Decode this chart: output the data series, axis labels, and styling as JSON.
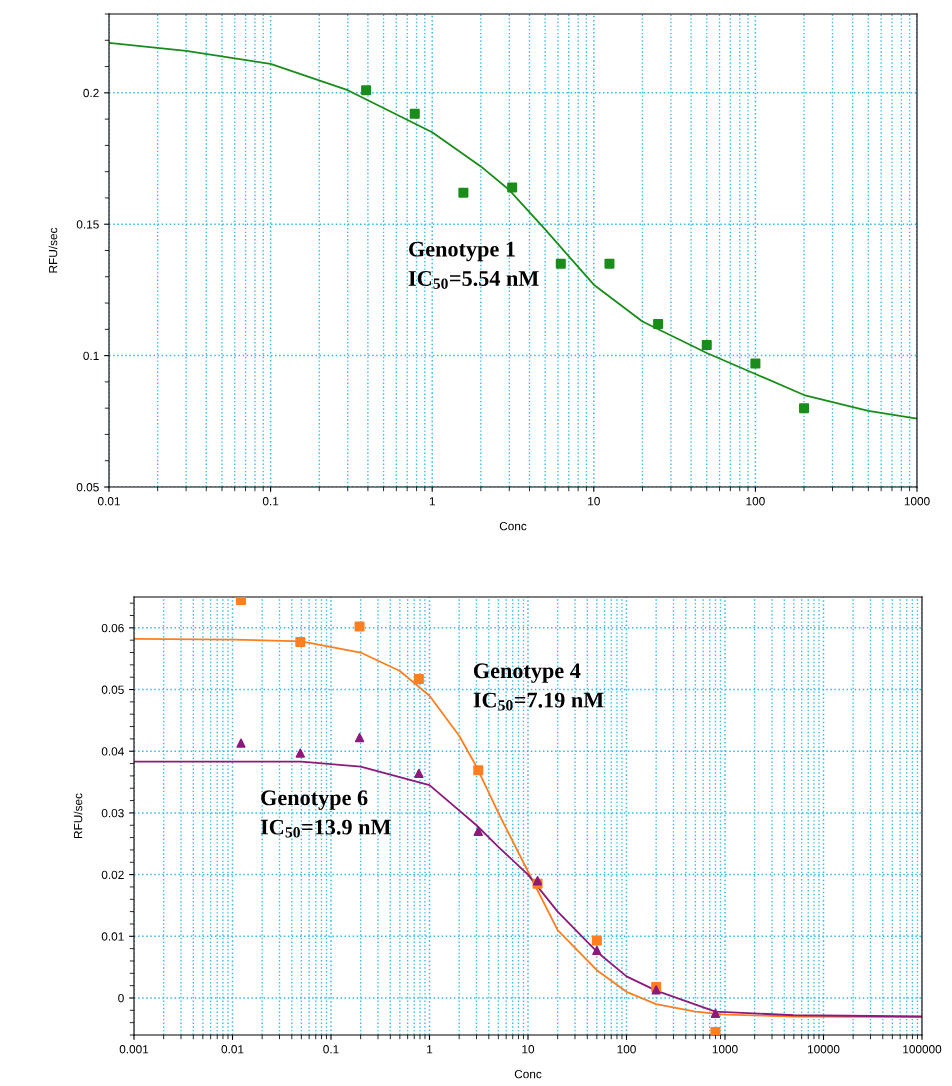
{
  "chart_data": [
    {
      "type": "scatter",
      "xlabel": "Conc",
      "ylabel": "RFU/sec",
      "log": "x",
      "grid": true,
      "xlim": [
        0.01,
        1000
      ],
      "xticks": [
        0.01,
        0.1,
        1,
        10,
        100,
        1000
      ],
      "ylim": [
        0.05,
        0.23
      ],
      "yticks": [
        0.05,
        0.1,
        0.15,
        0.2
      ],
      "annotations": [
        "Genotype 1\nIC$_{50}$=5.54 nM"
      ],
      "series": [
        {
          "color": "#1a8c1a",
          "marker": "square",
          "x": [
            0.39,
            0.78,
            1.56,
            3.125,
            6.25,
            12.5,
            25,
            50,
            100,
            200
          ],
          "values": [
            0.201,
            0.192,
            0.162,
            0.164,
            0.135,
            0.135,
            0.112,
            0.104,
            0.097,
            0.08
          ]
        },
        {
          "type": "line",
          "color": "#1a8c1a",
          "marker": "none",
          "x": [
            0.01,
            0.03,
            0.1,
            0.3,
            1,
            2,
            3,
            5,
            10,
            20,
            50,
            100,
            200,
            500,
            1000
          ],
          "values": [
            0.219,
            0.216,
            0.211,
            0.201,
            0.185,
            0.172,
            0.163,
            0.148,
            0.127,
            0.113,
            0.101,
            0.093,
            0.085,
            0.079,
            0.076
          ]
        }
      ]
    },
    {
      "type": "scatter",
      "xlabel": "Conc",
      "ylabel": "RFU/sec",
      "log": "x",
      "grid": true,
      "xlim": [
        0.001,
        100000
      ],
      "xticks": [
        0.001,
        0.01,
        0.1,
        1,
        10,
        100,
        1000,
        10000,
        100000
      ],
      "ylim": [
        -0.006,
        0.065
      ],
      "yticks": [
        0,
        0.01,
        0.02,
        0.03,
        0.04,
        0.05,
        0.06
      ],
      "annotations": [
        "Genotype 4\nIC$_{50}$=7.19 nM",
        "Genotype 6\nIC$_{50}$=13.9 nM"
      ],
      "series": [
        {
          "color": "#ff7f1f",
          "marker": "square",
          "x": [
            0.0122,
            0.0488,
            0.195,
            0.78,
            3.125,
            12.5,
            50,
            200,
            800
          ],
          "values": [
            0.0645,
            0.0577,
            0.0602,
            0.0517,
            0.0369,
            0.0185,
            0.0093,
            0.0018,
            -0.0055
          ]
        },
        {
          "color": "#8b1a7a",
          "marker": "triangle",
          "x": [
            0.0122,
            0.0488,
            0.195,
            0.78,
            3.125,
            12.5,
            50,
            200,
            800
          ],
          "values": [
            0.0413,
            0.0397,
            0.0422,
            0.0364,
            0.027,
            0.019,
            0.0077,
            0.0013,
            -0.0025
          ]
        },
        {
          "type": "line",
          "color": "#ff7f1f",
          "marker": "none",
          "x": [
            0.001,
            0.01,
            0.05,
            0.2,
            0.5,
            1,
            2,
            3,
            5,
            10,
            20,
            50,
            100,
            200,
            500,
            1000,
            5000,
            100000
          ],
          "values": [
            0.0582,
            0.0581,
            0.0578,
            0.056,
            0.053,
            0.049,
            0.0425,
            0.0375,
            0.03,
            0.0205,
            0.011,
            0.0045,
            0.001,
            -0.001,
            -0.0022,
            -0.0027,
            -0.003,
            -0.0031
          ]
        },
        {
          "type": "line",
          "color": "#8b1a7a",
          "marker": "none",
          "x": [
            0.001,
            0.05,
            0.2,
            1,
            3,
            5,
            10,
            20,
            50,
            100,
            200,
            800,
            5000,
            100000
          ],
          "values": [
            0.0383,
            0.0383,
            0.0375,
            0.0345,
            0.028,
            0.0245,
            0.02,
            0.014,
            0.0075,
            0.0035,
            0.0012,
            -0.0022,
            -0.0028,
            -0.003
          ]
        }
      ]
    }
  ]
}
